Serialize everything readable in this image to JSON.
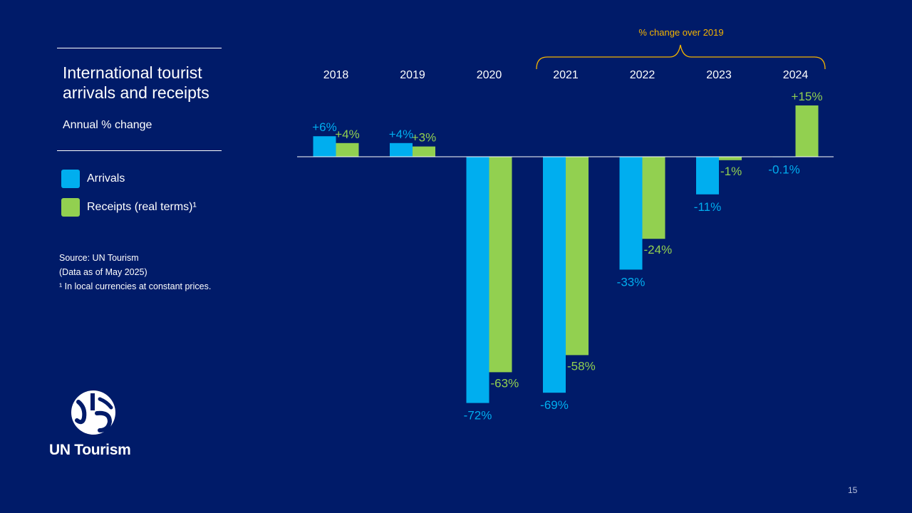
{
  "title": "International tourist arrivals and receipts",
  "subtitle": "Annual % change",
  "legend": [
    {
      "label": "Arrivals",
      "color": "#00aeef"
    },
    {
      "label": "Receipts (real terms)¹",
      "color": "#92d050"
    }
  ],
  "notes": {
    "source": "Source: UN Tourism",
    "data_date": "(Data as of May 2025)",
    "footnote": "¹ In local currencies at constant prices."
  },
  "bracket_label": "% change over 2019",
  "logo_text": "UN Tourism",
  "page_number": "15",
  "colors": {
    "background": "#001b69",
    "arrivals": "#00aeef",
    "receipts": "#92d050",
    "bracket": "#f5b400"
  },
  "chart_data": {
    "type": "bar",
    "categories": [
      "2018",
      "2019",
      "2020",
      "2021",
      "2022",
      "2023",
      "2024"
    ],
    "series": [
      {
        "name": "Arrivals",
        "values": [
          6,
          4,
          -72,
          -69,
          -33,
          -11,
          -0.1
        ],
        "labels": [
          "+6%",
          "+4%",
          "-72%",
          "-69%",
          "-33%",
          "-11%",
          "-0.1%"
        ]
      },
      {
        "name": "Receipts (real terms)¹",
        "values": [
          4,
          3,
          -63,
          -58,
          -24,
          -1,
          15
        ],
        "labels": [
          "+4%",
          "+3%",
          "-63%",
          "-58%",
          "-24%",
          "-1%",
          "+15%"
        ]
      }
    ],
    "grid": false
  }
}
